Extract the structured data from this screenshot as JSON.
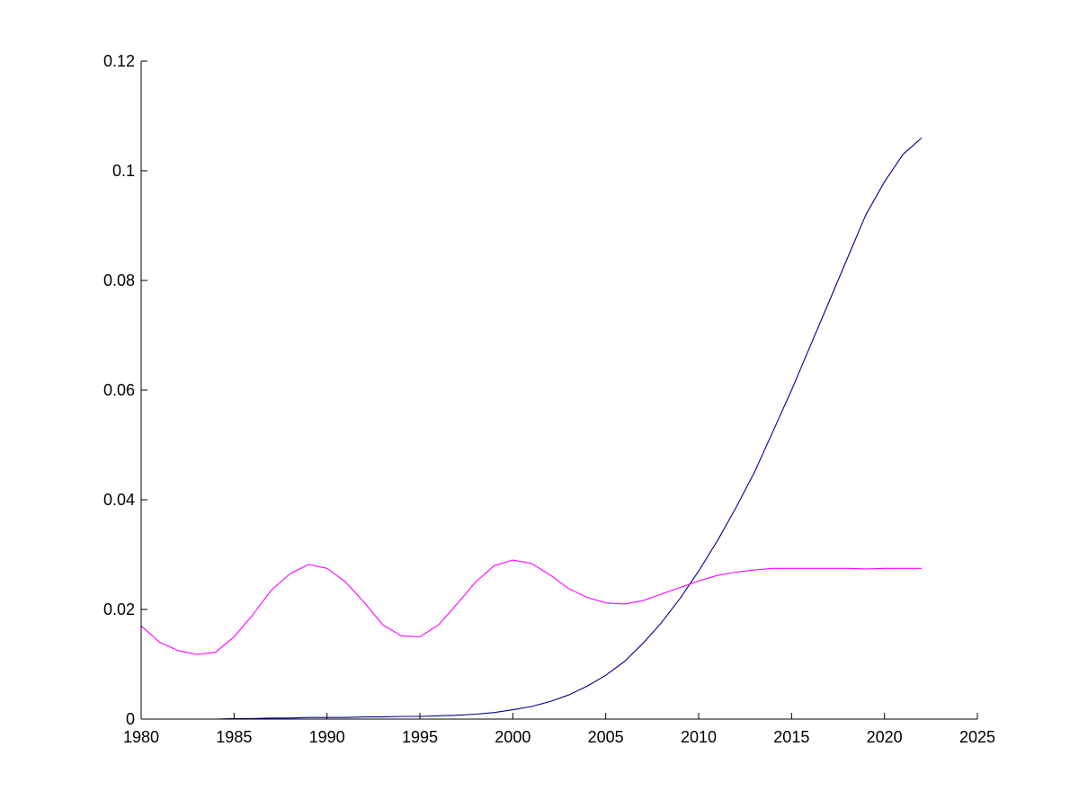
{
  "chart_data": {
    "type": "line",
    "title": "",
    "xlabel": "",
    "ylabel": "",
    "xlim": [
      1980,
      2025
    ],
    "ylim": [
      0,
      0.12
    ],
    "grid": false,
    "x_ticks": [
      1980,
      1985,
      1990,
      1995,
      2000,
      2005,
      2010,
      2015,
      2020,
      2025
    ],
    "x_tick_labels": [
      "1980",
      "1985",
      "1990",
      "1995",
      "2000",
      "2005",
      "2010",
      "2015",
      "2020",
      "2025"
    ],
    "y_ticks": [
      0,
      0.02,
      0.04,
      0.06,
      0.08,
      0.1,
      0.12
    ],
    "y_tick_labels": [
      "0",
      "0.02",
      "0.04",
      "0.06",
      "0.08",
      "0.1",
      "0.12"
    ],
    "series": [
      {
        "color": "#00008b",
        "x": [
          1980,
          1981,
          1982,
          1983,
          1984,
          1985,
          1986,
          1987,
          1988,
          1989,
          1990,
          1991,
          1992,
          1993,
          1994,
          1995,
          1996,
          1997,
          1998,
          1999,
          2000,
          2001,
          2002,
          2003,
          2004,
          2005,
          2006,
          2007,
          2008,
          2009,
          2010,
          2011,
          2012,
          2013,
          2014,
          2015,
          2016,
          2017,
          2018,
          2019,
          2020,
          2021,
          2022
        ],
        "y": [
          0,
          0,
          0,
          0,
          0,
          0.0001,
          0.0001,
          0.0002,
          0.0002,
          0.0003,
          0.0003,
          0.0003,
          0.0004,
          0.0004,
          0.0005,
          0.0005,
          0.0006,
          0.0007,
          0.0009,
          0.0012,
          0.0017,
          0.0023,
          0.0032,
          0.0044,
          0.006,
          0.008,
          0.0105,
          0.0138,
          0.0176,
          0.022,
          0.027,
          0.0325,
          0.0385,
          0.045,
          0.0525,
          0.06,
          0.068,
          0.076,
          0.084,
          0.092,
          0.098,
          0.103,
          0.106
        ]
      },
      {
        "color": "#ff00ff",
        "x": [
          1980,
          1981,
          1982,
          1983,
          1984,
          1985,
          1986,
          1987,
          1988,
          1989,
          1990,
          1991,
          1992,
          1993,
          1994,
          1995,
          1996,
          1997,
          1998,
          1999,
          2000,
          2001,
          2002,
          2003,
          2004,
          2005,
          2006,
          2007,
          2008,
          2009,
          2010,
          2011,
          2012,
          2013,
          2014,
          2015,
          2016,
          2017,
          2018,
          2019,
          2020,
          2021,
          2022
        ],
        "y": [
          0.017,
          0.014,
          0.0125,
          0.0118,
          0.0122,
          0.015,
          0.019,
          0.0235,
          0.0265,
          0.0282,
          0.0275,
          0.025,
          0.0213,
          0.0172,
          0.0152,
          0.015,
          0.0172,
          0.021,
          0.025,
          0.028,
          0.029,
          0.0284,
          0.0263,
          0.0238,
          0.0222,
          0.0212,
          0.021,
          0.0216,
          0.0228,
          0.024,
          0.0252,
          0.0262,
          0.0268,
          0.0272,
          0.0275,
          0.0275,
          0.0275,
          0.0275,
          0.0275,
          0.0274,
          0.0275,
          0.0275,
          0.0275
        ]
      }
    ]
  }
}
